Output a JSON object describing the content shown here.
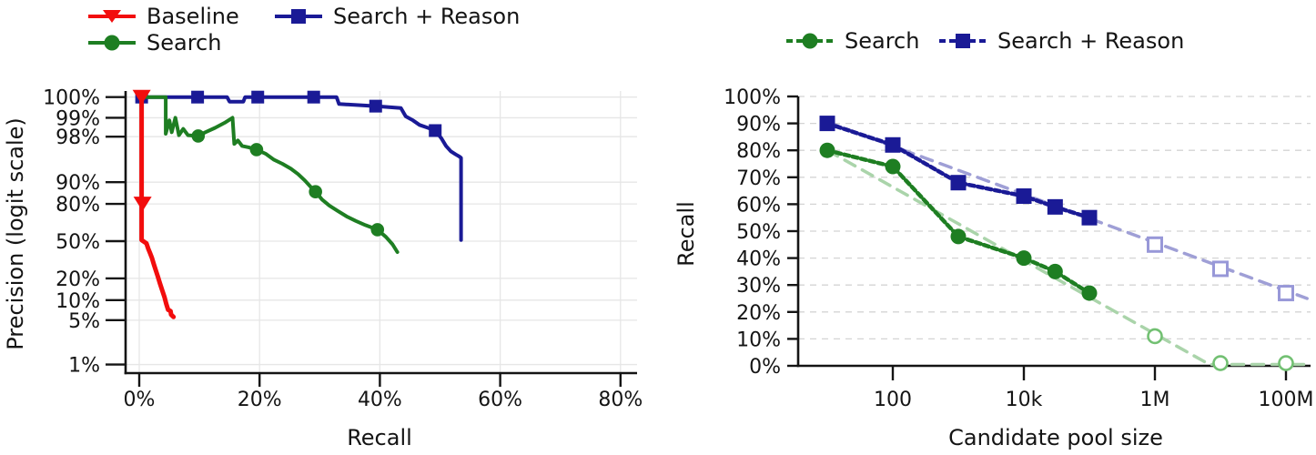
{
  "page": {
    "background": "#ffffff",
    "text_color": "#141414"
  },
  "chart_data": [
    {
      "id": "precision-recall",
      "type": "line",
      "title": "",
      "xlabel": "Recall",
      "ylabel": "Precision (logit scale)",
      "x_axis": {
        "scale": "linear",
        "range_pct": [
          0,
          83
        ],
        "ticks": [
          0,
          20,
          40,
          60,
          80
        ],
        "tick_labels": [
          "0%",
          "20%",
          "40%",
          "60%",
          "80%"
        ]
      },
      "y_axis": {
        "scale": "logit",
        "range_pct": [
          0.7,
          99.55
        ],
        "ticks": [
          100,
          99,
          98,
          90,
          80,
          50,
          20,
          10,
          5,
          1
        ],
        "tick_labels": [
          "100%",
          "99%",
          "98%",
          "90%",
          "80%",
          "50%",
          "20%",
          "10%",
          "5%",
          "1%"
        ]
      },
      "grid": "solid",
      "legend": [
        {
          "label": "Baseline",
          "color": "#f20d0d",
          "marker": "triangle-down"
        },
        {
          "label": "Search",
          "color": "#1e7e22",
          "marker": "circle"
        },
        {
          "label": "Search + Reason",
          "color": "#1a1a96",
          "marker": "square"
        }
      ],
      "series": [
        {
          "name": "Search + Reason",
          "color": "#1a1a96",
          "marker": "square",
          "line": "solid",
          "width": 4,
          "marker_points": [
            [
              0.4,
              100
            ],
            [
              9.7,
              100
            ],
            [
              19.7,
              100
            ],
            [
              29,
              99.55
            ],
            [
              39.3,
              99.35
            ],
            [
              49.2,
              98.4
            ]
          ],
          "points": [
            [
              0,
              100
            ],
            [
              14.6,
              100
            ],
            [
              15,
              99.45
            ],
            [
              17.3,
              99.45
            ],
            [
              17.6,
              99.9
            ],
            [
              22.8,
              99.9
            ],
            [
              23.2,
              99.75
            ],
            [
              25.8,
              99.75
            ],
            [
              26.2,
              99.55
            ],
            [
              29.4,
              99.55
            ],
            [
              29.8,
              99.7
            ],
            [
              32.8,
              99.7
            ],
            [
              33.2,
              99.4
            ],
            [
              39.3,
              99.35
            ],
            [
              43.5,
              99.3
            ],
            [
              44.3,
              99.05
            ],
            [
              45.5,
              98.9
            ],
            [
              46.6,
              98.7
            ],
            [
              48,
              98.55
            ],
            [
              49.2,
              98.4
            ],
            [
              50.2,
              97.9
            ],
            [
              51,
              97.2
            ],
            [
              51.8,
              96.6
            ],
            [
              52.6,
              96.2
            ],
            [
              53.2,
              95.9
            ],
            [
              53.5,
              95.7
            ],
            [
              53.5,
              51
            ]
          ]
        },
        {
          "name": "Search",
          "color": "#1e7e22",
          "marker": "circle",
          "line": "solid",
          "width": 4,
          "marker_points": [
            [
              9.8,
              98.05
            ],
            [
              19.5,
              96.8
            ],
            [
              29.3,
              86.3
            ],
            [
              39.6,
              60.5
            ]
          ],
          "points": [
            [
              0,
              100
            ],
            [
              4.4,
              100
            ],
            [
              4.4,
              98.2
            ],
            [
              5,
              98.9
            ],
            [
              5.4,
              98.3
            ],
            [
              6,
              99
            ],
            [
              6.6,
              98.1
            ],
            [
              7.3,
              98.5
            ],
            [
              8.1,
              98.1
            ],
            [
              9.8,
              98.05
            ],
            [
              11,
              98.3
            ],
            [
              12.6,
              98.55
            ],
            [
              14.2,
              98.8
            ],
            [
              15.5,
              99
            ],
            [
              15.8,
              97.4
            ],
            [
              16.4,
              97.7
            ],
            [
              17.1,
              97.2
            ],
            [
              18.2,
              97.05
            ],
            [
              19.5,
              96.8
            ],
            [
              21,
              96.3
            ],
            [
              22.4,
              95.4
            ],
            [
              23.8,
              94.7
            ],
            [
              25.2,
              93.7
            ],
            [
              26.4,
              92.4
            ],
            [
              27.5,
              90.6
            ],
            [
              28.5,
              88.3
            ],
            [
              29.3,
              86.3
            ],
            [
              30.4,
              82.5
            ],
            [
              31.6,
              79
            ],
            [
              33,
              75.5
            ],
            [
              34.5,
              71.5
            ],
            [
              36,
              68
            ],
            [
              37.6,
              64.5
            ],
            [
              39.6,
              60.5
            ],
            [
              41,
              54
            ],
            [
              42.1,
              47
            ],
            [
              42.9,
              40
            ]
          ]
        },
        {
          "name": "Baseline",
          "color": "#f20d0d",
          "marker": "triangle-down",
          "line": "solid",
          "width": 5,
          "marker_points": [
            [
              0.4,
              100
            ],
            [
              0.55,
              80
            ]
          ],
          "points": [
            [
              0.4,
              100
            ],
            [
              0.4,
              51
            ],
            [
              1.2,
              48
            ],
            [
              1.5,
              43
            ],
            [
              1.8,
              39
            ],
            [
              2.1,
              35
            ],
            [
              2.4,
              30
            ],
            [
              2.7,
              26
            ],
            [
              3.1,
              21
            ],
            [
              3.4,
              17.5
            ],
            [
              3.8,
              14
            ],
            [
              4.2,
              11
            ],
            [
              4.5,
              8.8
            ],
            [
              4.8,
              7.2
            ],
            [
              5.2,
              6.9
            ],
            [
              5.3,
              6.1
            ],
            [
              5.7,
              5.6
            ]
          ]
        }
      ]
    },
    {
      "id": "recall-vs-pool",
      "type": "line",
      "title": "",
      "xlabel": "Candidate pool size",
      "ylabel": "Recall",
      "x_axis": {
        "scale": "log",
        "range": [
          4,
          250000000
        ],
        "ticks": [
          100,
          10000,
          1000000,
          100000000
        ],
        "tick_labels": [
          "100",
          "10k",
          "1M",
          "100M"
        ]
      },
      "y_axis": {
        "scale": "linear",
        "range_pct": [
          0,
          100
        ],
        "ticks": [
          0,
          10,
          20,
          30,
          40,
          50,
          60,
          70,
          80,
          90,
          100
        ],
        "tick_labels": [
          "0%",
          "10%",
          "20%",
          "30%",
          "40%",
          "50%",
          "60%",
          "70%",
          "80%",
          "90%",
          "100%"
        ]
      },
      "grid": "dashed-horizontal",
      "legend": [
        {
          "label": "Search",
          "color": "#1e7e22",
          "marker": "circle"
        },
        {
          "label": "Search + Reason",
          "color": "#1a1a96",
          "marker": "square"
        }
      ],
      "series": [
        {
          "name": "Search trend",
          "color": "#aad4aa",
          "marker": "none",
          "line": "dash",
          "width": 3.5,
          "points": [
            [
              10,
              80
            ],
            [
              6800000,
              0.5
            ],
            [
              210000000,
              0.5
            ]
          ]
        },
        {
          "name": "Search + Reason trend",
          "color": "#9f9fd6",
          "marker": "none",
          "line": "dash",
          "width": 3.5,
          "points": [
            [
              10,
              90.5
            ],
            [
              210000000,
              25
            ]
          ]
        },
        {
          "name": "Search",
          "color": "#1e7e22",
          "marker": "circle",
          "line": "dash-dense",
          "width": 4.5,
          "points": [
            [
              10,
              80
            ],
            [
              100,
              74
            ],
            [
              1000,
              48
            ],
            [
              10000,
              40
            ],
            [
              30000,
              35
            ],
            [
              100000,
              27
            ]
          ]
        },
        {
          "name": "Search + Reason",
          "color": "#1a1a96",
          "marker": "square",
          "line": "dash-dense",
          "width": 4.5,
          "points": [
            [
              10,
              90
            ],
            [
              100,
              82
            ],
            [
              1000,
              68
            ],
            [
              10000,
              63
            ],
            [
              30000,
              59
            ],
            [
              100000,
              55
            ]
          ]
        },
        {
          "name": "Search extrapolated",
          "color": "#72c072",
          "marker": "circle-hollow",
          "line": "none",
          "points": [
            [
              1000000,
              11
            ],
            [
              10000000,
              1
            ],
            [
              100000000,
              1
            ]
          ]
        },
        {
          "name": "Search + Reason extrapolated",
          "color": "#9898d8",
          "marker": "square-hollow",
          "line": "none",
          "points": [
            [
              1000000,
              45
            ],
            [
              10000000,
              36
            ],
            [
              100000000,
              27
            ]
          ]
        }
      ]
    }
  ]
}
